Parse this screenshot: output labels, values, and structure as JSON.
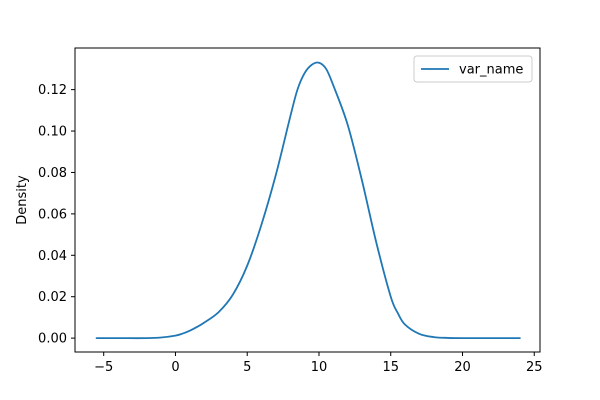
{
  "chart_data": {
    "type": "line",
    "title": "",
    "xlabel": "",
    "ylabel": "Density",
    "xlim": [
      -7.0,
      25.4
    ],
    "ylim": [
      -0.0067,
      0.1401
    ],
    "xticks": [
      -5,
      0,
      5,
      10,
      15,
      20,
      25
    ],
    "xtick_labels": [
      "−5",
      "0",
      "5",
      "10",
      "15",
      "20",
      "25"
    ],
    "yticks": [
      0.0,
      0.02,
      0.04,
      0.06,
      0.08,
      0.1,
      0.12
    ],
    "ytick_labels": [
      "0.00",
      "0.02",
      "0.04",
      "0.06",
      "0.08",
      "0.10",
      "0.12"
    ],
    "grid": false,
    "legend_position": "top-right",
    "series": [
      {
        "name": "var_name",
        "color": "#1f77b4",
        "x": [
          -5.5,
          -4,
          -2,
          -1,
          0,
          0.5,
          1,
          1.5,
          2,
          3,
          4,
          5,
          6,
          7,
          8,
          8.5,
          9,
          9.5,
          10,
          10.5,
          11,
          12,
          13,
          14,
          15,
          15.5,
          16,
          17,
          18,
          19,
          20,
          22,
          24
        ],
        "values": [
          0.0,
          0.0,
          0.0,
          0.0003,
          0.0012,
          0.0022,
          0.0036,
          0.0054,
          0.0075,
          0.0125,
          0.021,
          0.035,
          0.055,
          0.079,
          0.107,
          0.12,
          0.128,
          0.132,
          0.133,
          0.13,
          0.122,
          0.103,
          0.076,
          0.046,
          0.02,
          0.012,
          0.0065,
          0.002,
          0.0005,
          0.0001,
          0.0,
          0.0,
          0.0
        ]
      }
    ]
  }
}
